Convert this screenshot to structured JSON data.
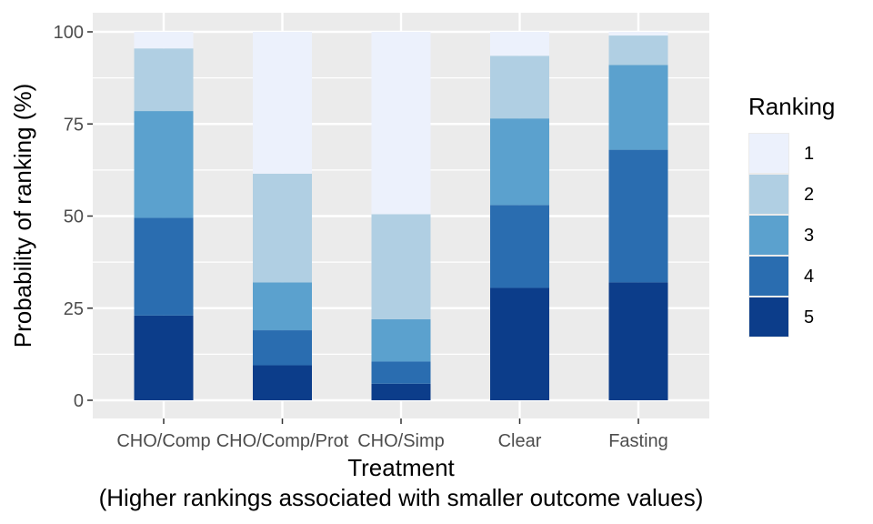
{
  "chart_data": {
    "type": "bar",
    "stacked": true,
    "xlabel": "Treatment",
    "xlabel_line2": "(Higher rankings associated with smaller outcome values)",
    "ylabel": "Probability of ranking (%)",
    "ylim": [
      0,
      100
    ],
    "yticks": [
      0,
      25,
      50,
      75,
      100
    ],
    "categories": [
      "CHO/Comp",
      "CHO/Comp/Prot",
      "CHO/Simp",
      "Clear",
      "Fasting"
    ],
    "legend_title": "Ranking",
    "legend_position": "right",
    "grid": true,
    "series": [
      {
        "name": "1",
        "color": "#ECF1FC",
        "values": [
          4.5,
          38.5,
          49.5,
          6.5,
          1.0
        ]
      },
      {
        "name": "2",
        "color": "#B0CFE3",
        "values": [
          17.0,
          29.5,
          28.5,
          17.0,
          8.0
        ]
      },
      {
        "name": "3",
        "color": "#5BA1CE",
        "values": [
          29.0,
          13.0,
          11.5,
          23.5,
          23.0
        ]
      },
      {
        "name": "4",
        "color": "#2A6DB0",
        "values": [
          26.5,
          9.5,
          6.0,
          22.5,
          36.0
        ]
      },
      {
        "name": "5",
        "color": "#0C3D8A",
        "values": [
          23.0,
          9.5,
          4.5,
          30.5,
          32.0
        ]
      }
    ]
  }
}
